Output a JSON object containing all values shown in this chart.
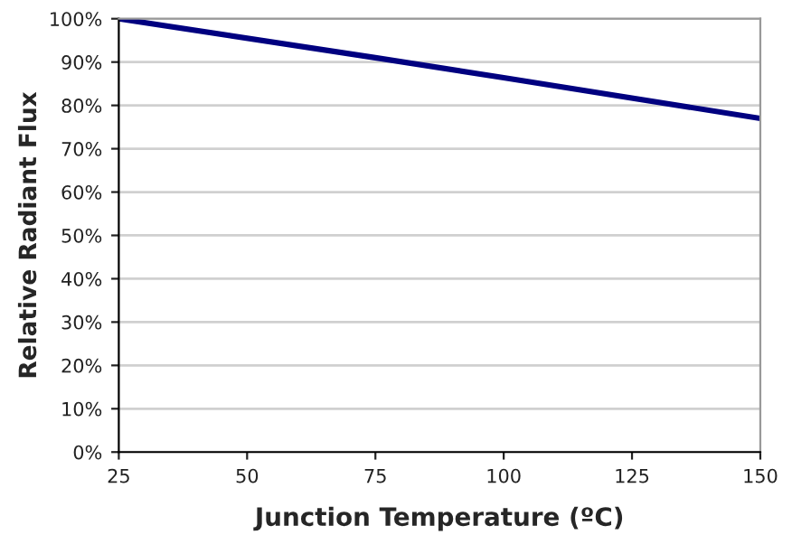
{
  "chart_data": {
    "type": "line",
    "xlabel": "Junction Temperature (ºC)",
    "ylabel": "Relative Radiant Flux",
    "x": [
      25,
      75,
      100,
      150
    ],
    "series": [
      {
        "color": "#000080",
        "values": [
          100,
          91,
          86.4,
          77
        ]
      }
    ],
    "xlim": [
      25,
      150
    ],
    "xticks": [
      25,
      50,
      75,
      100,
      125,
      150
    ],
    "ylim": [
      0,
      100
    ],
    "yticks": [
      {
        "value": 0,
        "label": "0%"
      },
      {
        "value": 10,
        "label": "10%"
      },
      {
        "value": 20,
        "label": "20%"
      },
      {
        "value": 30,
        "label": "30%"
      },
      {
        "value": 40,
        "label": "40%"
      },
      {
        "value": 50,
        "label": "50%"
      },
      {
        "value": 60,
        "label": "60%"
      },
      {
        "value": 70,
        "label": "70%"
      },
      {
        "value": 80,
        "label": "80%"
      },
      {
        "value": 90,
        "label": "90%"
      },
      {
        "value": 100,
        "label": "100%"
      }
    ],
    "grid": "y",
    "marker": "none",
    "line_style": "solid"
  }
}
